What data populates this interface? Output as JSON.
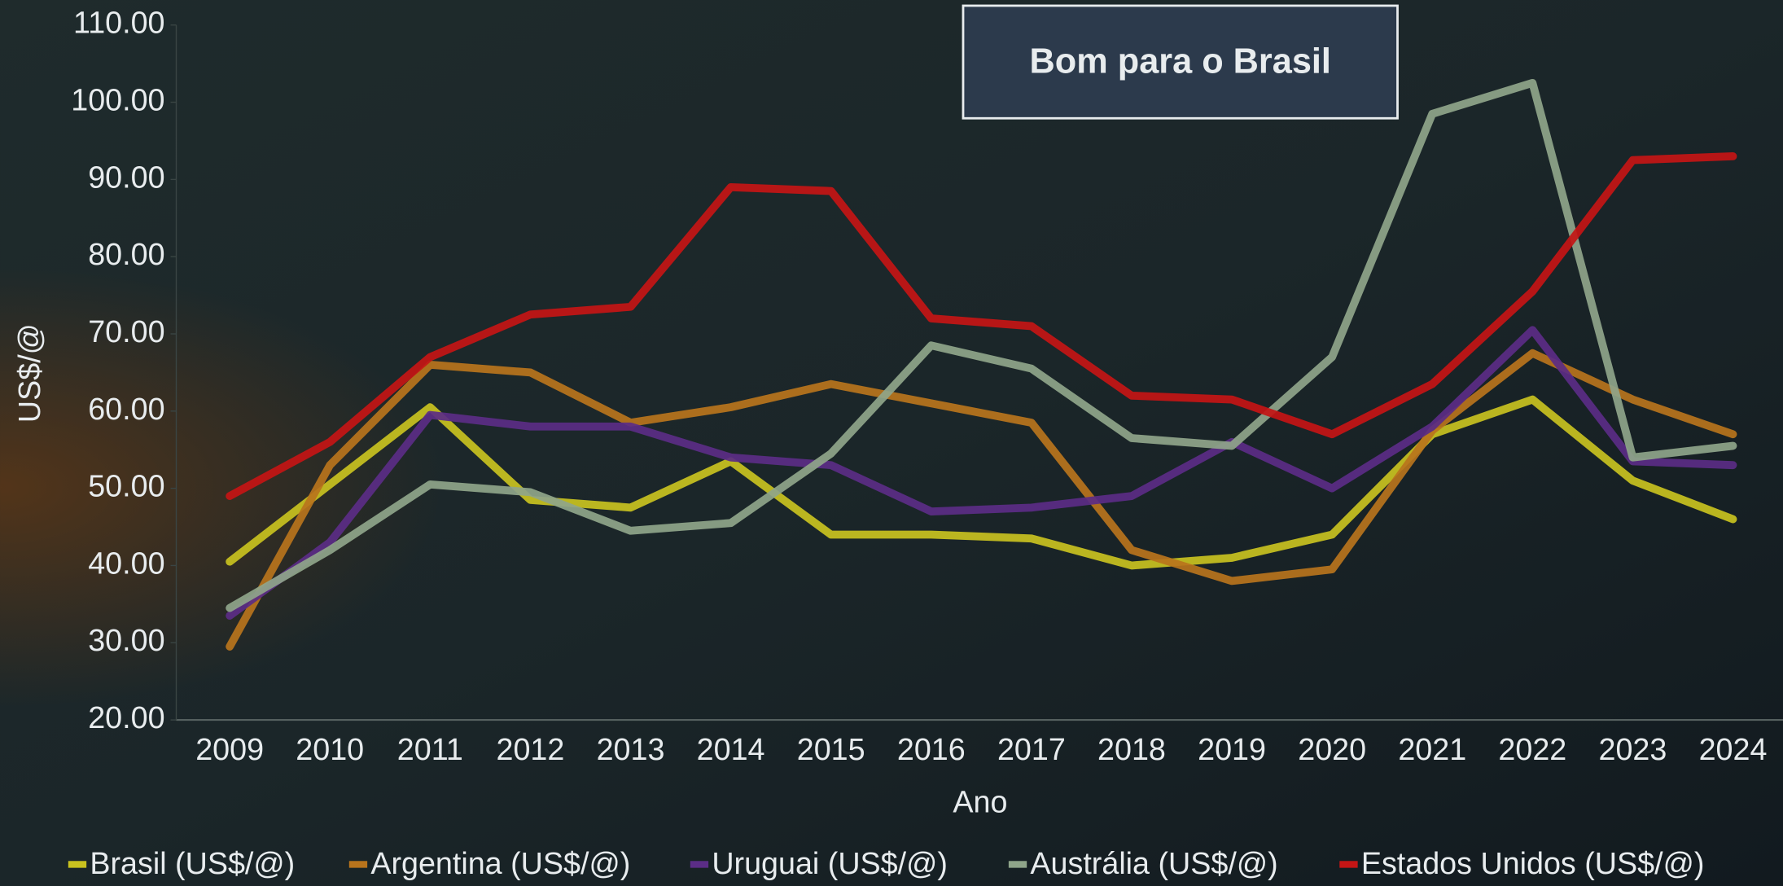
{
  "chart_data": {
    "type": "line",
    "annotation": "Bom para o Brasil",
    "x_label": "Ano",
    "y_label": "US$/@",
    "categories": [
      "2009",
      "2010",
      "2011",
      "2012",
      "2013",
      "2014",
      "2015",
      "2016",
      "2017",
      "2018",
      "2019",
      "2020",
      "2021",
      "2022",
      "2023",
      "2024"
    ],
    "series": [
      {
        "name": "Brasil (US$/@)",
        "color": "#c9c21f",
        "values": [
          40.5,
          50.5,
          60.5,
          48.5,
          47.5,
          53.5,
          44,
          44,
          43.5,
          40,
          41,
          44,
          57,
          61.5,
          51,
          46
        ]
      },
      {
        "name": "Argentina (US$/@)",
        "color": "#b8741c",
        "values": [
          29.5,
          53,
          66,
          65,
          58.5,
          60.5,
          63.5,
          61,
          58.5,
          42,
          38,
          39.5,
          57.5,
          67.5,
          61.5,
          57
        ]
      },
      {
        "name": "Uruguai (US$/@)",
        "color": "#5b2d86",
        "values": [
          33.5,
          43,
          59.5,
          58,
          58,
          54,
          53,
          47,
          47.5,
          49,
          56,
          50,
          58,
          70.5,
          53.5,
          53
        ]
      },
      {
        "name": "Austrália (US$/@)",
        "color": "#8fa58a",
        "values": [
          34.5,
          42,
          50.5,
          49.5,
          44.5,
          45.5,
          54.5,
          68.5,
          65.5,
          56.5,
          55.5,
          67,
          98.5,
          102.5,
          54,
          55.5
        ]
      },
      {
        "name": "Estados Unidos (US$/@)",
        "color": "#c41515",
        "values": [
          49,
          56,
          67,
          72.5,
          73.5,
          89,
          88.5,
          72,
          71,
          62,
          61.5,
          57,
          63.5,
          75.5,
          92.5,
          93
        ]
      }
    ],
    "ylim": [
      20,
      110
    ],
    "yticks": [
      {
        "value": 20,
        "label": "20.00"
      },
      {
        "value": 30,
        "label": "30.00"
      },
      {
        "value": 40,
        "label": "40.00"
      },
      {
        "value": 50,
        "label": "50.00"
      },
      {
        "value": 60,
        "label": "60.00"
      },
      {
        "value": 70,
        "label": "70.00"
      },
      {
        "value": 80,
        "label": "80.00"
      },
      {
        "value": 90,
        "label": "90.00"
      },
      {
        "value": 100,
        "label": "100.00"
      },
      {
        "value": 110,
        "label": "110.00"
      }
    ],
    "legend": "bottom"
  }
}
